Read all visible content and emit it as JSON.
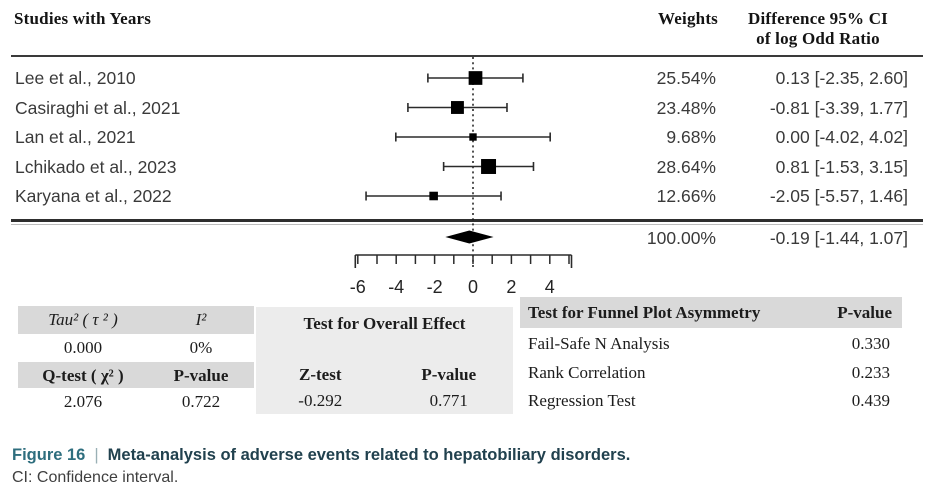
{
  "header": {
    "studies_col": "Studies with Years",
    "weights_col": "Weights",
    "difference_col_line1": "Difference 95% CI",
    "difference_col_line2": "of log Odd Ratio"
  },
  "chart_data": {
    "type": "forest",
    "x_axis": {
      "ticks": [
        -6,
        -5,
        -4,
        -3,
        -2,
        -1,
        0,
        1,
        2,
        3,
        4,
        5
      ],
      "labels": [
        {
          "value": -6,
          "text": "-6"
        },
        {
          "value": -4,
          "text": "-4"
        },
        {
          "value": -2,
          "text": "-2"
        },
        {
          "value": 0,
          "text": "0"
        },
        {
          "value": 2,
          "text": "2"
        },
        {
          "value": 4,
          "text": "4"
        }
      ],
      "zero_line": 0
    },
    "studies": [
      {
        "label": "Lee et al., 2010",
        "weight": "25.54%",
        "weight_value": 25.54,
        "estimate": 0.13,
        "ci_low": -2.35,
        "ci_high": 2.6,
        "ci_text": "0.13 [-2.35, 2.60]"
      },
      {
        "label": "Casiraghi et al., 2021",
        "weight": "23.48%",
        "weight_value": 23.48,
        "estimate": -0.81,
        "ci_low": -3.39,
        "ci_high": 1.77,
        "ci_text": "-0.81 [-3.39, 1.77]"
      },
      {
        "label": "Lan et al., 2021",
        "weight": "9.68%",
        "weight_value": 9.68,
        "estimate": 0.0,
        "ci_low": -4.02,
        "ci_high": 4.02,
        "ci_text": "0.00 [-4.02, 4.02]"
      },
      {
        "label": "Lchikado et al., 2023",
        "weight": "28.64%",
        "weight_value": 28.64,
        "estimate": 0.81,
        "ci_low": -1.53,
        "ci_high": 3.15,
        "ci_text": "0.81 [-1.53, 3.15]"
      },
      {
        "label": "Karyana et al., 2022",
        "weight": "12.66%",
        "weight_value": 12.66,
        "estimate": -2.05,
        "ci_low": -5.57,
        "ci_high": 1.46,
        "ci_text": "-2.05 [-5.57, 1.46]"
      }
    ],
    "summary": {
      "weight": "100.00%",
      "estimate": -0.19,
      "ci_low": -1.44,
      "ci_high": 1.07,
      "ci_text": "-0.19 [-1.44, 1.07]"
    }
  },
  "stats": {
    "left_table": {
      "h1a": "Tau² ( τ ² )",
      "h1b": "I²",
      "v1a": "0.000",
      "v1b": "0%",
      "h2a": "Q-test ( χ² )",
      "h2b": "P-value",
      "v2a": "2.076",
      "v2b": "0.722"
    },
    "middle_table": {
      "title": "Test for Overall Effect",
      "h1": "Z-test",
      "h2": "P-value",
      "v1": "-0.292",
      "v2": "0.771"
    },
    "right_table": {
      "h1": "Test for Funnel Plot Asymmetry",
      "h2": "P-value",
      "rows": [
        {
          "label": "Fail-Safe N Analysis",
          "value": "0.330"
        },
        {
          "label": "Rank Correlation",
          "value": "0.233"
        },
        {
          "label": "Regression Test",
          "value": "0.439"
        }
      ]
    }
  },
  "caption": {
    "figure_label": "Figure 16",
    "separator": "|",
    "title": "Meta-analysis of adverse events related to hepatobiliary disorders.",
    "note": "CI: Confidence interval."
  },
  "colors": {
    "figure_label": "#2e6e7e",
    "caption_title": "#21414e",
    "table_header_bg": "#d9d9d9",
    "middle_block_bg": "#ececec",
    "marker": "#000000",
    "rule": "#3a3a3a"
  }
}
